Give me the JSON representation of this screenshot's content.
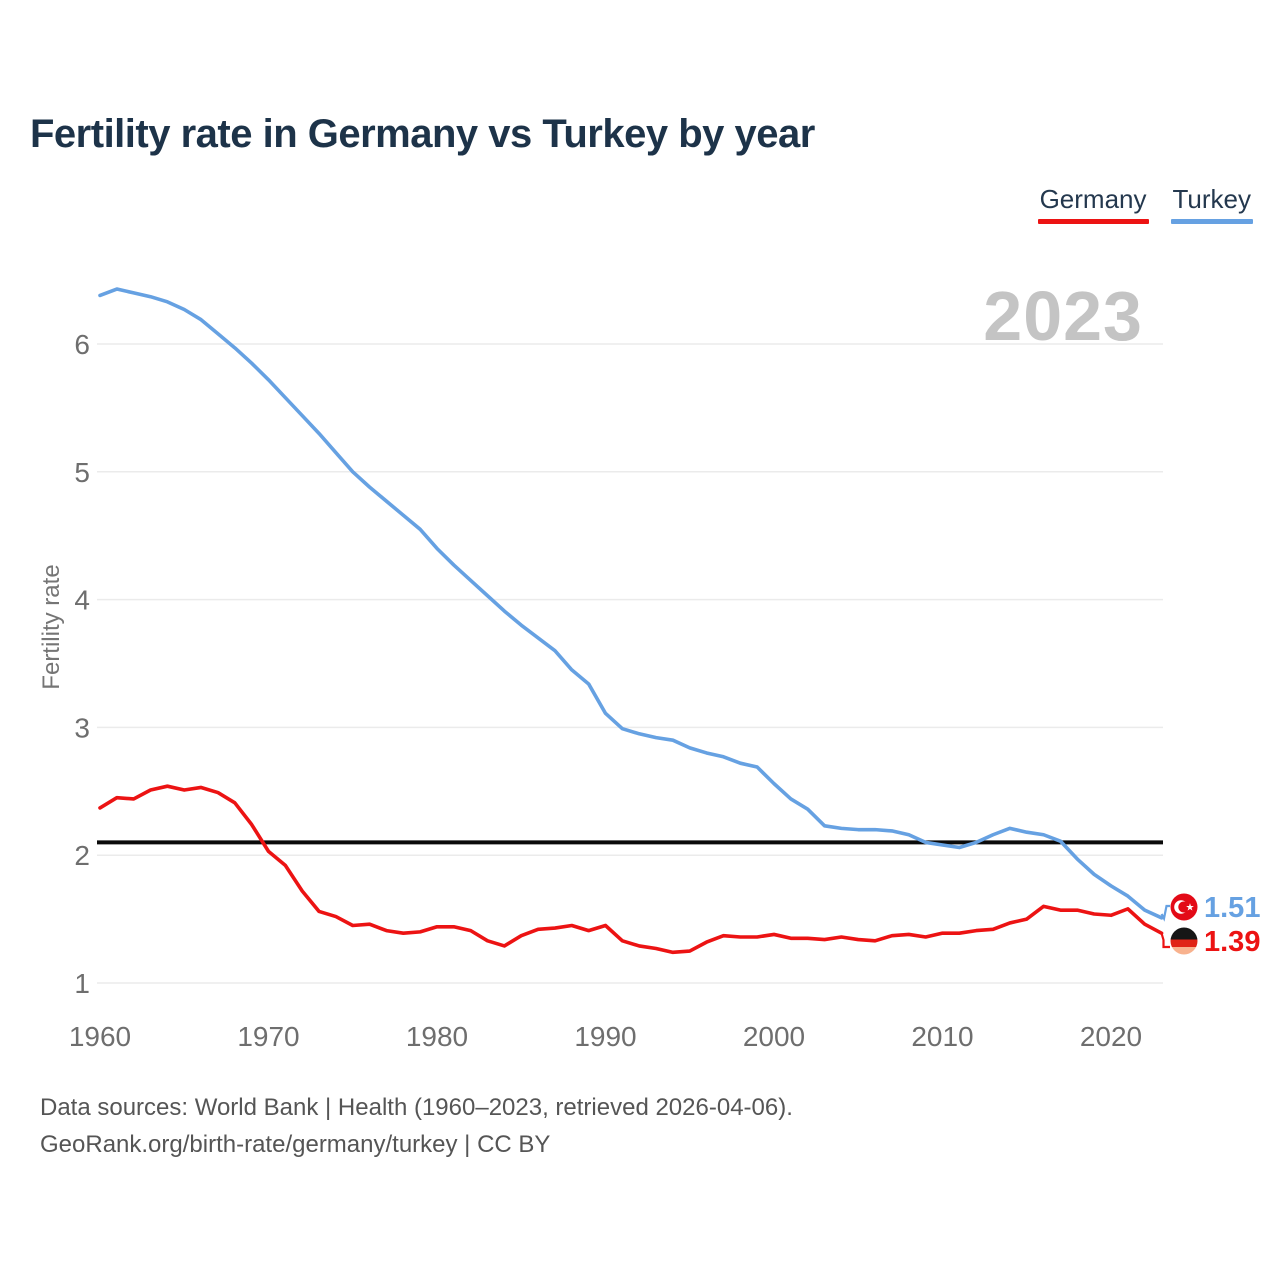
{
  "title": "Fertility rate in Germany vs Turkey by year",
  "watermark_year": "2023",
  "legend": {
    "items": [
      {
        "label": "Germany",
        "color": "#ec1313"
      },
      {
        "label": "Turkey",
        "color": "#66a1e2"
      }
    ]
  },
  "axes": {
    "y_label": "Fertility rate",
    "y_ticks": [
      1,
      2,
      3,
      4,
      5,
      6
    ],
    "x_ticks": [
      1960,
      1970,
      1980,
      1990,
      2000,
      2010,
      2020
    ]
  },
  "annotations": {
    "reference_line_value": 2.1,
    "reference_line_color": "#0a0a0a"
  },
  "end_labels": {
    "turkey": {
      "value": "1.51",
      "flag": "turkey-flag"
    },
    "germany": {
      "value": "1.39",
      "flag": "germany-flag"
    }
  },
  "footer": {
    "line1": "Data sources: World Bank | Health (1960–2023, retrieved 2026-04-06).",
    "line2": "GeoRank.org/birth-rate/germany/turkey | CC BY"
  },
  "colors": {
    "turkey_blue": "#66a1e2",
    "germany_red": "#ec1313",
    "reference_black": "#0a0a0a",
    "title_navy": "#1d3349",
    "tick_gray": "#6e6e6e",
    "grid_gray": "#ebebeb",
    "watermark_gray": "#c4c4c4",
    "turkey_flag_red": "#e30a17",
    "german_flag_black": "#161616",
    "german_flag_red": "#e02416",
    "german_flag_gold": "#f8b28e"
  },
  "chart_data": {
    "type": "line",
    "title": "Fertility rate in Germany vs Turkey by year",
    "xlabel": "",
    "ylabel": "Fertility rate",
    "ylim": [
      0.85,
      6.6
    ],
    "xlim": [
      1960,
      2023
    ],
    "grid": true,
    "legend_position": "top-right",
    "reference_line_y": 2.1,
    "x": [
      1960,
      1961,
      1962,
      1963,
      1964,
      1965,
      1966,
      1967,
      1968,
      1969,
      1970,
      1971,
      1972,
      1973,
      1974,
      1975,
      1976,
      1977,
      1978,
      1979,
      1980,
      1981,
      1982,
      1983,
      1984,
      1985,
      1986,
      1987,
      1988,
      1989,
      1990,
      1991,
      1992,
      1993,
      1994,
      1995,
      1996,
      1997,
      1998,
      1999,
      2000,
      2001,
      2002,
      2003,
      2004,
      2005,
      2006,
      2007,
      2008,
      2009,
      2010,
      2011,
      2012,
      2013,
      2014,
      2015,
      2016,
      2017,
      2018,
      2019,
      2020,
      2021,
      2022,
      2023
    ],
    "series": [
      {
        "name": "Turkey",
        "color": "#66a1e2",
        "end_value": 1.51,
        "values": [
          6.38,
          6.43,
          6.4,
          6.37,
          6.33,
          6.27,
          6.19,
          6.08,
          5.97,
          5.85,
          5.72,
          5.58,
          5.44,
          5.3,
          5.15,
          5.0,
          4.88,
          4.77,
          4.66,
          4.55,
          4.4,
          4.27,
          4.15,
          4.03,
          3.91,
          3.8,
          3.7,
          3.6,
          3.45,
          3.34,
          3.11,
          2.99,
          2.95,
          2.92,
          2.9,
          2.84,
          2.8,
          2.77,
          2.72,
          2.69,
          2.56,
          2.44,
          2.36,
          2.23,
          2.21,
          2.2,
          2.2,
          2.19,
          2.16,
          2.1,
          2.08,
          2.06,
          2.1,
          2.16,
          2.21,
          2.18,
          2.16,
          2.11,
          1.97,
          1.85,
          1.76,
          1.68,
          1.57,
          1.51
        ]
      },
      {
        "name": "Germany",
        "color": "#ec1313",
        "end_value": 1.39,
        "values": [
          2.37,
          2.45,
          2.44,
          2.51,
          2.54,
          2.51,
          2.53,
          2.49,
          2.41,
          2.24,
          2.03,
          1.92,
          1.72,
          1.56,
          1.52,
          1.45,
          1.46,
          1.41,
          1.39,
          1.4,
          1.44,
          1.44,
          1.41,
          1.33,
          1.29,
          1.37,
          1.42,
          1.43,
          1.45,
          1.41,
          1.45,
          1.33,
          1.29,
          1.27,
          1.24,
          1.25,
          1.32,
          1.37,
          1.36,
          1.36,
          1.38,
          1.35,
          1.35,
          1.34,
          1.36,
          1.34,
          1.33,
          1.37,
          1.38,
          1.36,
          1.39,
          1.39,
          1.41,
          1.42,
          1.47,
          1.5,
          1.6,
          1.57,
          1.57,
          1.54,
          1.53,
          1.58,
          1.46,
          1.39
        ]
      }
    ]
  }
}
